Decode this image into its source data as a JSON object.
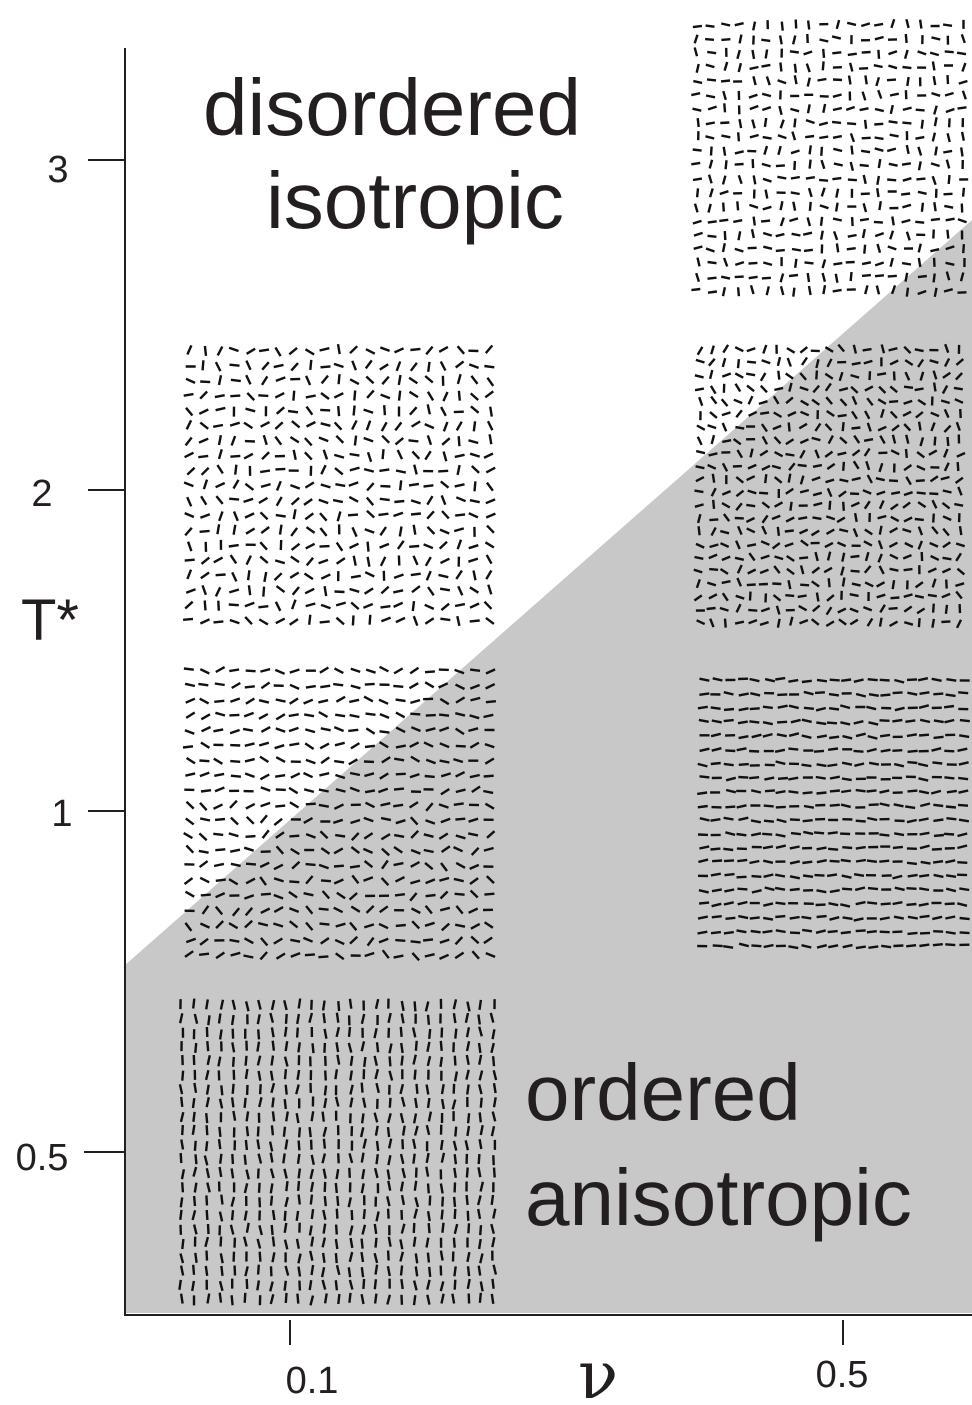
{
  "axes": {
    "y_label": "T*",
    "x_label": "ν",
    "y_ticks": [
      "3",
      "2",
      "1",
      "0.5"
    ],
    "x_ticks": [
      "0.1",
      "0.5"
    ]
  },
  "regions": {
    "disordered": [
      "disordered",
      "isotropic"
    ],
    "ordered": [
      "ordered",
      "anisotropic"
    ]
  }
}
